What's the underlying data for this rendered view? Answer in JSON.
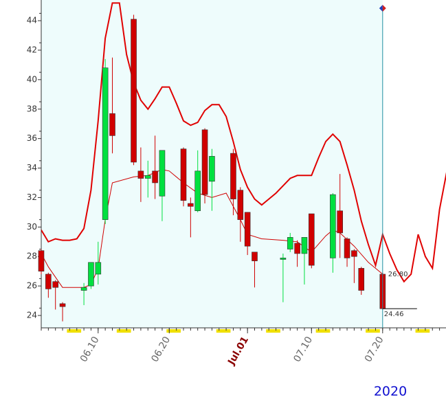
{
  "chart_data": {
    "type": "candlestick",
    "ylim": [
      23.16,
      45.17
    ],
    "yticks": [
      24,
      26,
      28,
      30,
      32,
      34,
      36,
      38,
      40,
      42,
      44
    ],
    "xticks": [
      "06.10",
      "06.20",
      {
        "value": "07.01",
        "label": "Jul.01"
      },
      "07.10",
      "07.20"
    ],
    "year_label": "2020",
    "up_color": "#00e040",
    "down_color": "#d00000",
    "candles": {
      "x": [
        "06.02",
        "06.03",
        "06.04",
        "06.05",
        "06.08",
        "06.09",
        "06.10",
        "06.11",
        "06.12",
        "06.15",
        "06.16",
        "06.17",
        "06.18",
        "06.19",
        "06.22",
        "06.23",
        "06.24",
        "06.25",
        "06.26",
        "06.29",
        "06.30",
        "07.01",
        "07.02",
        "07.06",
        "07.07",
        "07.08",
        "07.09",
        "07.10",
        "07.13",
        "07.14",
        "07.15",
        "07.16",
        "07.17",
        "07.20"
      ],
      "open": [
        28.4,
        26.8,
        26.3,
        24.8,
        25.7,
        26.0,
        26.8,
        30.5,
        37.7,
        44.1,
        33.8,
        33.3,
        33.8,
        32.1,
        35.3,
        31.6,
        31.1,
        36.6,
        33.1,
        35.0,
        32.5,
        31.0,
        28.3,
        27.8,
        28.5,
        28.9,
        28.2,
        30.9,
        27.9,
        31.1,
        29.2,
        28.4,
        27.2,
        26.8
      ],
      "high": [
        28.5,
        26.9,
        26.4,
        24.9,
        26.2,
        27.6,
        29.0,
        41.4,
        41.5,
        44.4,
        35.4,
        34.5,
        36.2,
        35.2,
        35.4,
        32.0,
        35.2,
        36.7,
        35.3,
        35.3,
        32.7,
        31.0,
        28.3,
        28.2,
        29.6,
        29.1,
        29.3,
        30.9,
        32.3,
        33.6,
        29.3,
        28.5,
        27.3,
        26.9
      ],
      "low": [
        26.8,
        25.2,
        24.4,
        23.6,
        24.7,
        25.8,
        26.1,
        30.2,
        35.0,
        34.2,
        31.7,
        32.0,
        31.9,
        30.4,
        31.4,
        29.3,
        31.0,
        31.6,
        31.1,
        30.8,
        29.0,
        28.1,
        25.9,
        24.9,
        28.3,
        27.3,
        26.1,
        27.2,
        26.9,
        27.9,
        27.3,
        26.2,
        25.4,
        24.4
      ],
      "close": [
        27.0,
        25.8,
        25.9,
        24.6,
        25.9,
        27.6,
        27.6,
        40.8,
        36.2,
        34.4,
        33.3,
        33.5,
        33.0,
        35.2,
        31.8,
        31.4,
        33.8,
        32.2,
        34.8,
        31.9,
        30.5,
        28.7,
        27.7,
        27.9,
        29.3,
        28.2,
        29.3,
        27.4,
        32.2,
        29.6,
        27.9,
        28.0,
        25.7,
        24.46
      ]
    },
    "price_labels": [
      {
        "value": 26.8,
        "label": "26.80"
      },
      {
        "value": 24.46,
        "label": "24.46"
      }
    ],
    "lines": [
      {
        "color": "#e00000",
        "width": 2,
        "x": [
          "06.02",
          "06.03",
          "06.04",
          "06.05",
          "06.06",
          "06.07",
          "06.08",
          "06.09",
          "06.10",
          "06.11",
          "06.12",
          "06.13",
          "06.14",
          "06.15",
          "06.16",
          "06.17",
          "06.18",
          "06.19",
          "06.20",
          "06.21",
          "06.22",
          "06.23",
          "06.24",
          "06.25",
          "06.26",
          "06.27",
          "06.28",
          "06.29",
          "06.30",
          "07.01",
          "07.02",
          "07.03",
          "07.04",
          "07.05",
          "07.06",
          "07.07",
          "07.08",
          "07.09",
          "07.10",
          "07.11",
          "07.12",
          "07.13",
          "07.14",
          "07.15",
          "07.16",
          "07.17",
          "07.18",
          "07.19",
          "07.20",
          "07.21",
          "07.22",
          "07.23",
          "07.24",
          "07.25",
          "07.26",
          "07.27",
          "07.28",
          "07.29"
        ],
        "values": [
          29.8,
          29.0,
          29.2,
          29.1,
          29.1,
          29.2,
          29.9,
          32.5,
          37.2,
          42.8,
          45.2,
          45.2,
          41.7,
          39.8,
          38.6,
          38.0,
          38.7,
          39.5,
          39.5,
          38.4,
          37.2,
          36.9,
          37.1,
          37.9,
          38.3,
          38.3,
          37.5,
          35.8,
          33.9,
          32.7,
          31.9,
          31.5,
          31.9,
          32.3,
          32.8,
          33.3,
          33.5,
          33.5,
          33.5,
          34.7,
          35.8,
          36.3,
          35.8,
          34.2,
          32.5,
          30.4,
          28.8,
          27.4,
          29.5,
          28.2,
          27.1,
          26.3,
          26.8,
          29.5,
          28.0,
          27.2,
          31.2,
          33.7
        ]
      },
      {
        "color": "#d00000",
        "width": 1,
        "x": [
          "06.02",
          "06.03",
          "06.05",
          "06.08",
          "06.09",
          "06.10",
          "06.11",
          "06.12",
          "06.15",
          "06.17",
          "06.19",
          "06.20",
          "06.22",
          "06.24",
          "06.26",
          "06.28",
          "06.30",
          "07.01",
          "07.03",
          "07.06",
          "07.08",
          "07.10",
          "07.12",
          "07.13",
          "07.14",
          "07.16",
          "07.18",
          "07.20"
        ],
        "values": [
          28.2,
          27.3,
          25.9,
          25.9,
          26.1,
          27.2,
          30.5,
          33.0,
          33.4,
          33.5,
          33.9,
          33.8,
          33.0,
          32.3,
          32.0,
          32.3,
          30.5,
          29.5,
          29.2,
          29.1,
          29.0,
          28.3,
          29.4,
          29.8,
          29.6,
          28.7,
          27.6,
          26.8
        ]
      }
    ]
  }
}
